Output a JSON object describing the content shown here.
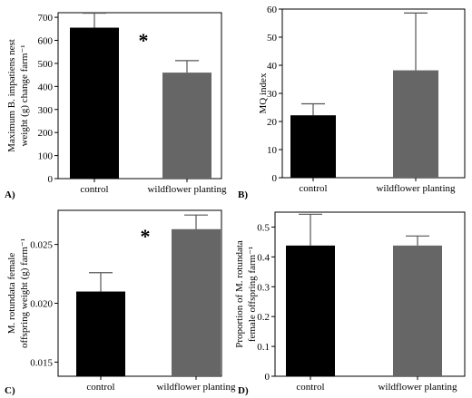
{
  "chart_data": [
    {
      "type": "bar",
      "panel_label": "A)",
      "categories": [
        "control",
        "wildflower planting"
      ],
      "values": [
        655,
        460
      ],
      "error_upper": [
        718,
        512
      ],
      "ylabel": "Maximum B. impatiens nest weight (g) change farm⁻¹",
      "ylim": [
        0,
        720
      ],
      "yticks": [
        0,
        100,
        200,
        300,
        400,
        500,
        600,
        700
      ],
      "ytick_labels": [
        "0",
        "100",
        "200",
        "300",
        "400",
        "500",
        "600",
        "700"
      ],
      "annotation": "*",
      "grid": false
    },
    {
      "type": "bar",
      "panel_label": "B)",
      "categories": [
        "control",
        "wildflower planting"
      ],
      "values": [
        22.2,
        38.2
      ],
      "error_upper": [
        26.3,
        58.6
      ],
      "ylabel": "MQ index",
      "ylim": [
        0,
        60
      ],
      "yticks": [
        0,
        10,
        20,
        30,
        40,
        50,
        60
      ],
      "ytick_labels": [
        "0",
        "10",
        "20",
        "30",
        "40",
        "50",
        "60"
      ],
      "grid": false
    },
    {
      "type": "bar",
      "panel_label": "C)",
      "categories": [
        "control",
        "wildflower planting"
      ],
      "values": [
        0.021,
        0.0263
      ],
      "error_upper": [
        0.0226,
        0.0275
      ],
      "ylabel": "M. rotundata female offspring weight (g) farm⁻¹",
      "ylim": [
        0.0138,
        0.0279
      ],
      "yticks": [
        0.015,
        0.02,
        0.025
      ],
      "ytick_labels": [
        "0.015",
        "0.020",
        "0.025"
      ],
      "annotation": "*",
      "grid": false
    },
    {
      "type": "bar",
      "panel_label": "D)",
      "categories": [
        "control",
        "wildflower planting"
      ],
      "values": [
        0.438,
        0.438
      ],
      "error_upper": [
        0.543,
        0.47
      ],
      "ylabel": "Proportion of M. rotundata female offspring farm⁻¹",
      "ylim": [
        0,
        0.55
      ],
      "yticks": [
        0,
        0.1,
        0.2,
        0.3,
        0.4,
        0.5
      ],
      "ytick_labels": [
        "0",
        "0.1",
        "0.2",
        "0.3",
        "0.4",
        "0.5"
      ],
      "grid": false
    }
  ],
  "colors": {
    "control_bar": "#000000",
    "wildflower_bar": "#666666",
    "axis": "#000000",
    "error_bar": "#555555"
  }
}
